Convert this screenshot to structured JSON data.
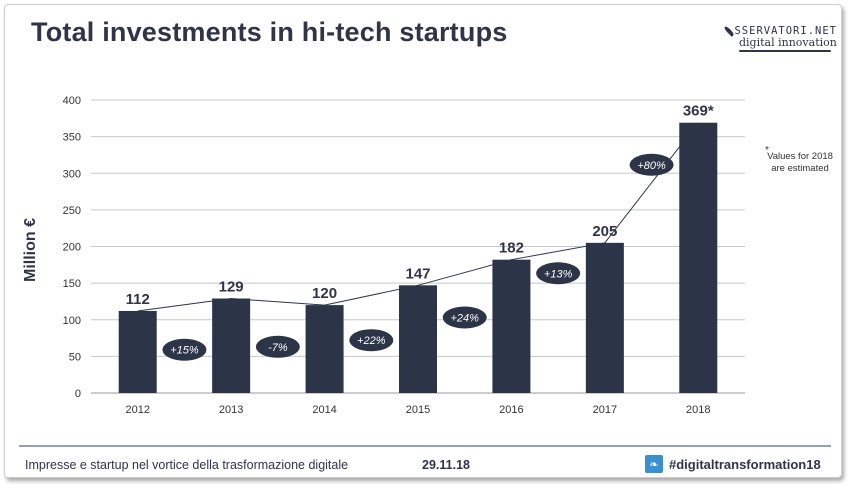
{
  "title": "Total investments in hi-tech startups",
  "brand": {
    "top": "SSERVATORI.NET",
    "bottom": "digital innovation"
  },
  "note": {
    "star": "*",
    "text": "Values for 2018 are estimated"
  },
  "footer": {
    "left": "Impresse e startup nel vortice della trasformazione digitale",
    "date": "29.11.18",
    "hashtag": "#digitaltransformation18"
  },
  "colors": {
    "bar": "#2c3447",
    "text": "#2f3447",
    "grid": "#c8c8c8",
    "twitter": "#3a90cf"
  },
  "chart_data": {
    "type": "bar",
    "title": "Total investments in hi-tech startups",
    "ylabel": "Million €",
    "xlabel": "",
    "categories": [
      "2012",
      "2013",
      "2014",
      "2015",
      "2016",
      "2017",
      "2018"
    ],
    "values": [
      112,
      129,
      120,
      147,
      182,
      205,
      369
    ],
    "value_labels": [
      "112",
      "129",
      "120",
      "147",
      "182",
      "205",
      "369*"
    ],
    "growth_labels": [
      "+15%",
      "-7%",
      "+22%",
      "+24%",
      "+13%",
      "+80%"
    ],
    "ylim": [
      0,
      400
    ],
    "yticks": [
      0,
      50,
      100,
      150,
      200,
      250,
      300,
      350,
      400
    ],
    "grid": true,
    "trend_line": true
  }
}
